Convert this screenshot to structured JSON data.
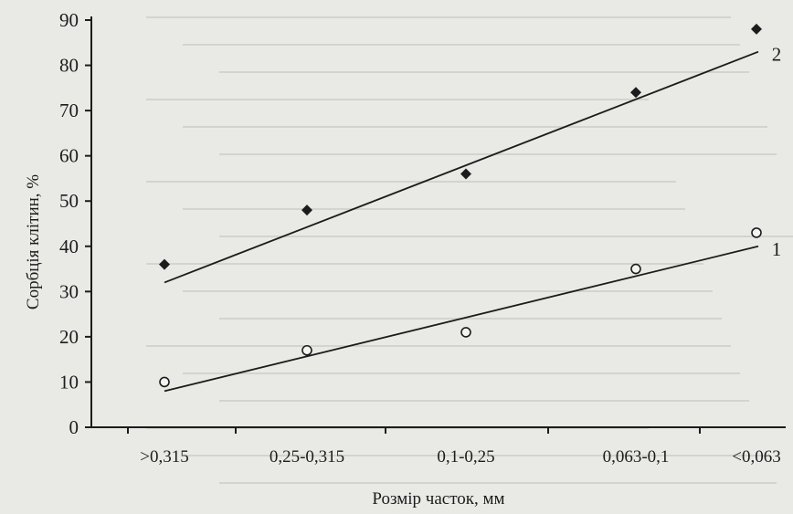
{
  "chart_data": {
    "type": "scatter",
    "categories": [
      ">0,315",
      "0,25-0,315",
      "0,1-0,25",
      "0,063-0,1",
      "<0,063"
    ],
    "xlabel": "Розмір часток, мм",
    "ylabel": "Сорбція клітин, %",
    "ylim": [
      0,
      90
    ],
    "yticks": [
      0,
      10,
      20,
      30,
      40,
      50,
      60,
      70,
      80,
      90
    ],
    "grid": false,
    "series": [
      {
        "name": "1",
        "marker": "open-circle",
        "values": [
          10,
          17,
          21,
          35,
          43
        ],
        "trendline": [
          8,
          40
        ]
      },
      {
        "name": "2",
        "marker": "filled-diamond",
        "values": [
          36,
          48,
          56,
          74,
          88
        ],
        "trendline": [
          32,
          83
        ]
      }
    ],
    "colors": {
      "ink": "#1c1c1c",
      "background": "#e9e9e6"
    }
  }
}
